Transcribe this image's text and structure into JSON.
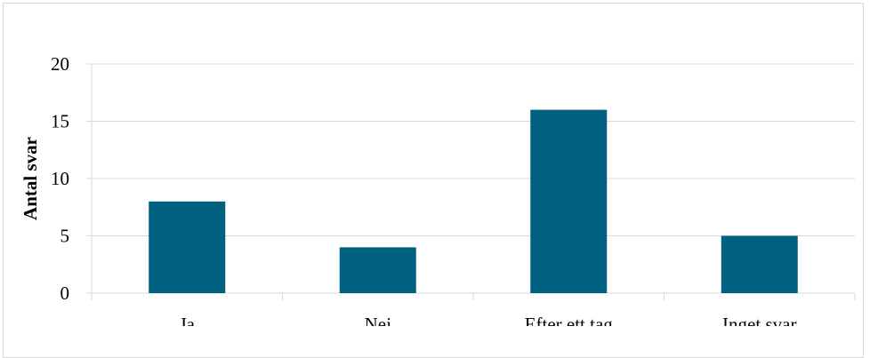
{
  "chart_data": {
    "type": "bar",
    "categories": [
      "Ja",
      "Nej",
      "Efter ett tag",
      "Inget svar"
    ],
    "values": [
      8,
      4,
      16,
      5
    ],
    "title": "",
    "xlabel": "",
    "ylabel": "Antal svar",
    "ylim": [
      0,
      20
    ],
    "yticks": [
      0,
      5,
      10,
      15,
      20
    ],
    "grid": true,
    "colors": {
      "bar": "#00607f",
      "grid": "#d9d9d9"
    }
  }
}
